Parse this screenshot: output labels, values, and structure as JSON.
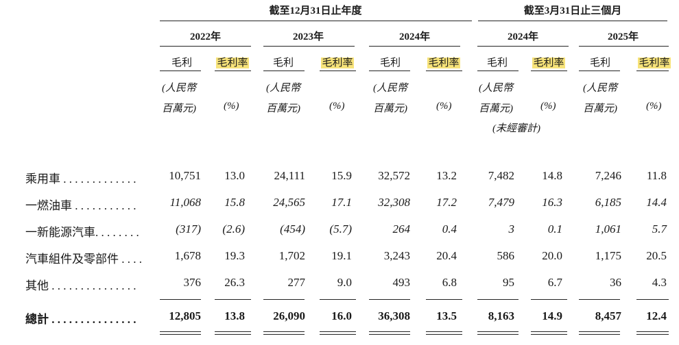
{
  "header": {
    "group1": "截至12月31日止年度",
    "group2": "截至3月31日止三個月",
    "years": [
      "2022年",
      "2023年",
      "2024年",
      "2024年",
      "2025年"
    ],
    "gross_profit": "毛利",
    "gross_margin": "毛利率",
    "unit_line1": "(人民幣",
    "unit_line2": "百萬元)",
    "pct": "(%)",
    "unaudited": "(未經審計)"
  },
  "rows": [
    {
      "label": "乘用車 . . . . . . . . . . . . .",
      "style": "normal",
      "values": [
        "10,751",
        "13.0",
        "24,111",
        "15.9",
        "32,572",
        "13.2",
        "7,482",
        "14.8",
        "7,246",
        "11.8"
      ]
    },
    {
      "label": "一燃油車 . . . . . . . . . . .",
      "style": "italic",
      "values": [
        "11,068",
        "15.8",
        "24,565",
        "17.1",
        "32,308",
        "17.2",
        "7,479",
        "16.3",
        "6,185",
        "14.4"
      ]
    },
    {
      "label": "一新能源汽車. . . . . . . .",
      "style": "italic",
      "values": [
        "(317)",
        "(2.6)",
        "(454)",
        "(5.7)",
        "264",
        "0.4",
        "3",
        "0.1",
        "1,061",
        "5.7"
      ]
    },
    {
      "label": "汽車組件及零部件 . . . .",
      "style": "normal",
      "values": [
        "1,678",
        "19.3",
        "1,702",
        "19.1",
        "3,243",
        "20.4",
        "586",
        "20.0",
        "1,175",
        "20.5"
      ]
    },
    {
      "label": "其他 . . . . . . . . . . . . . . .",
      "style": "normal",
      "values": [
        "376",
        "26.3",
        "277",
        "9.0",
        "493",
        "6.8",
        "95",
        "6.7",
        "36",
        "4.3"
      ]
    },
    {
      "label": "總計 . . . . . . . . . . . . . . .",
      "style": "bold",
      "values": [
        "12,805",
        "13.8",
        "26,090",
        "16.0",
        "36,308",
        "13.5",
        "8,163",
        "14.9",
        "8,457",
        "12.4"
      ]
    }
  ]
}
